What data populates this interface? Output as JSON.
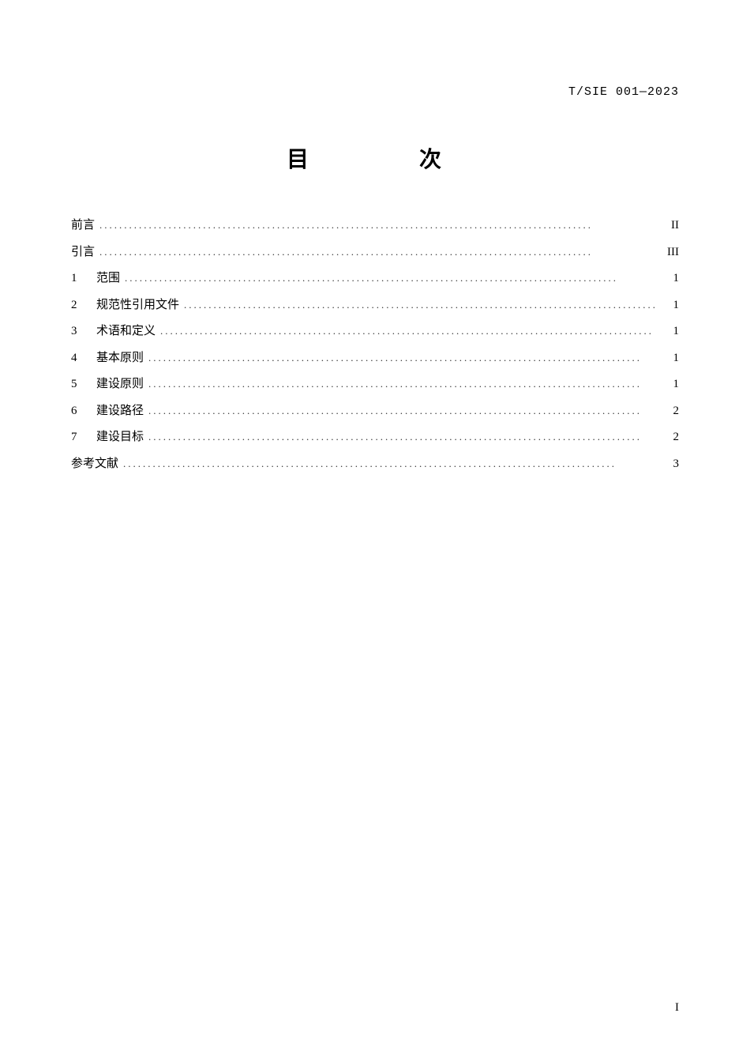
{
  "header": {
    "document_code": "T/SIE 001—2023"
  },
  "title": "目　　次",
  "toc": {
    "entries": [
      {
        "num": "",
        "label": "前言",
        "page": "II",
        "has_num": false
      },
      {
        "num": "",
        "label": "引言",
        "page": "III",
        "has_num": false
      },
      {
        "num": "1",
        "label": "范围",
        "page": "1",
        "has_num": true
      },
      {
        "num": "2",
        "label": "规范性引用文件",
        "page": "1",
        "has_num": true
      },
      {
        "num": "3",
        "label": "术语和定义",
        "page": "1",
        "has_num": true
      },
      {
        "num": "4",
        "label": "基本原则",
        "page": "1",
        "has_num": true
      },
      {
        "num": "5",
        "label": "建设原则",
        "page": "1",
        "has_num": true
      },
      {
        "num": "6",
        "label": "建设路径",
        "page": "2",
        "has_num": true
      },
      {
        "num": "7",
        "label": "建设目标",
        "page": "2",
        "has_num": true
      },
      {
        "num": "",
        "label": "参考文献",
        "page": "3",
        "has_num": false
      }
    ]
  },
  "footer": {
    "page_number": "I"
  },
  "style": {
    "dots": "...................................................................................................."
  }
}
